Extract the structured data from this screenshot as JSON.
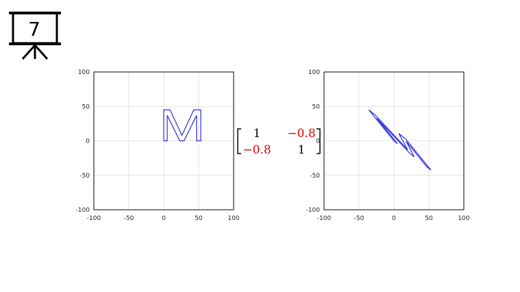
{
  "slide_number": "7",
  "matrix": {
    "rows": [
      [
        "1",
        "−0.8"
      ],
      [
        "−0.8",
        "1"
      ]
    ]
  },
  "chart_data": [
    {
      "type": "line",
      "xlim": [
        -100,
        100
      ],
      "ylim": [
        -100,
        100
      ],
      "xticks": [
        -100,
        -50,
        0,
        50,
        100
      ],
      "yticks": [
        -100,
        -50,
        0,
        50,
        100
      ],
      "grid": true,
      "series": [
        {
          "color": "#2b2bd9",
          "x": [
            0,
            0,
            9,
            26,
            43,
            53,
            53,
            47,
            47,
            29,
            23,
            5,
            5,
            0
          ],
          "values": [
            0,
            45,
            45,
            8,
            45,
            45,
            0,
            0,
            37,
            0,
            0,
            37,
            0,
            0
          ]
        }
      ]
    },
    {
      "type": "line",
      "xlim": [
        -100,
        100
      ],
      "ylim": [
        -100,
        100
      ],
      "xticks": [
        -100,
        -50,
        0,
        50,
        100
      ],
      "yticks": [
        -100,
        -50,
        0,
        50,
        100
      ],
      "grid": true,
      "series": [
        {
          "color": "#2b2bd9",
          "x": [
            0,
            -36,
            -27,
            19.6,
            7,
            17,
            53,
            47,
            17.4,
            29,
            23,
            -24.6,
            5,
            0
          ],
          "values": [
            0,
            45,
            37.8,
            -12.8,
            10.6,
            2.6,
            -42.4,
            -37.6,
            -0.6,
            -23.2,
            -18.4,
            33,
            -4,
            0
          ]
        }
      ]
    }
  ]
}
